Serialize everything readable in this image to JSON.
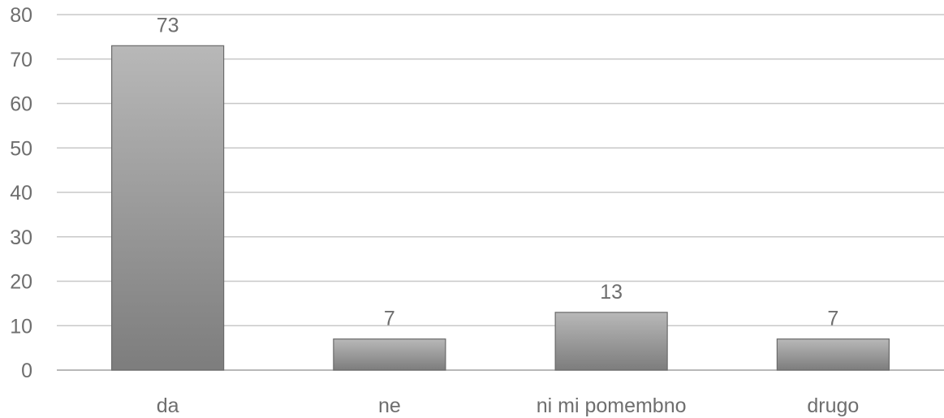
{
  "chart_data": {
    "type": "bar",
    "categories": [
      "da",
      "ne",
      "ni mi pomembno",
      "drugo"
    ],
    "values": [
      73,
      7,
      13,
      7
    ],
    "data_labels": [
      "73",
      "7",
      "13",
      "7"
    ],
    "ylim": [
      0,
      80
    ],
    "yticks": [
      "0",
      "10",
      "20",
      "30",
      "40",
      "50",
      "60",
      "70",
      "80"
    ],
    "title": "",
    "xlabel": "",
    "ylabel": "",
    "grid": true,
    "legend": "none",
    "colors": {
      "bar_top": "#b8b8b8",
      "bar_bottom": "#7d7d7d",
      "bar_stroke": "#6a6a6a",
      "grid": "#c8c8c8",
      "text": "#6e6e6e"
    }
  }
}
